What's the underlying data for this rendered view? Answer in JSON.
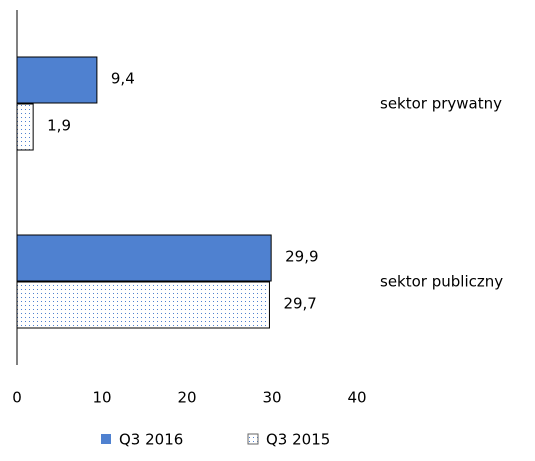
{
  "chart_data": {
    "type": "hbar",
    "categories": [
      "sektor prywatny",
      "sektor publiczny"
    ],
    "series": [
      {
        "name": "Q3 2016",
        "color": "#4f81d0",
        "values": [
          9.4,
          29.9
        ],
        "value_labels": [
          "9,4",
          "29,9"
        ]
      },
      {
        "name": "Q3 2015",
        "color": "#4f81d0",
        "pattern": "dots",
        "values": [
          1.9,
          29.7
        ],
        "value_labels": [
          "1,9",
          "29,7"
        ]
      }
    ],
    "xlim": [
      0,
      40
    ],
    "xticks": [
      0,
      10,
      20,
      30,
      40
    ],
    "grid": false,
    "legend": "bottom"
  }
}
